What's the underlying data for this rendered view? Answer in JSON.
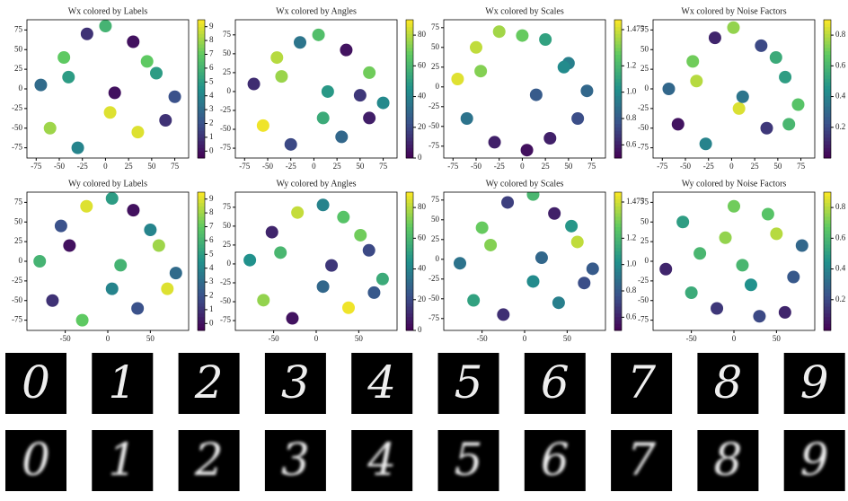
{
  "chart_data": [
    {
      "type": "scatter",
      "title": "Wx colored by Labels",
      "colormap": "viridis",
      "x": [
        -70,
        -45,
        -20,
        5,
        30,
        55,
        75,
        -60,
        -30,
        0,
        35,
        65,
        -40,
        10,
        45
      ],
      "values": [
        5,
        40,
        70,
        -30,
        60,
        20,
        -10,
        -50,
        -75,
        80,
        -55,
        -40,
        15,
        -5,
        35
      ],
      "color_values": [
        3,
        7,
        1,
        9,
        0,
        5,
        2,
        8,
        4,
        6,
        9,
        1,
        5,
        0,
        7
      ],
      "xlim": [
        -85,
        90
      ],
      "xticks": [
        -75,
        -50,
        -25,
        0,
        25,
        50,
        75
      ],
      "ylim": [
        -88,
        88
      ],
      "yticks": [
        -75,
        -50,
        -25,
        0,
        25,
        50,
        75
      ],
      "clim": [
        -0.5,
        9.5
      ],
      "cticks": [
        0,
        1,
        2,
        3,
        4,
        5,
        6,
        7,
        8,
        9
      ]
    },
    {
      "type": "scatter",
      "title": "Wx colored by Angles",
      "colormap": "viridis",
      "x": [
        -65,
        -40,
        -15,
        10,
        35,
        60,
        75,
        -55,
        -25,
        5,
        30,
        60,
        -35,
        15,
        50
      ],
      "values": [
        10,
        45,
        65,
        -35,
        55,
        25,
        -15,
        -45,
        -70,
        75,
        -60,
        -35,
        20,
        0,
        -5
      ],
      "color_values": [
        12,
        80,
        35,
        55,
        5,
        70,
        42,
        88,
        20,
        63,
        30,
        8,
        76,
        48,
        15
      ],
      "xlim": [
        -85,
        90
      ],
      "xticks": [
        -75,
        -50,
        -25,
        0,
        25,
        50,
        75
      ],
      "ylim": [
        -88,
        95
      ],
      "yticks": [
        -75,
        -50,
        -25,
        0,
        25,
        50,
        75
      ],
      "clim": [
        0,
        90
      ],
      "cticks": [
        0,
        20,
        40,
        60,
        80
      ]
    },
    {
      "type": "scatter",
      "title": "Wx colored by Scales",
      "colormap": "viridis",
      "x": [
        -70,
        -50,
        -25,
        0,
        25,
        50,
        70,
        -60,
        -30,
        5,
        30,
        60,
        -45,
        15,
        45
      ],
      "values": [
        10,
        50,
        70,
        65,
        60,
        30,
        -5,
        -40,
        -70,
        -80,
        -65,
        -40,
        20,
        -10,
        25
      ],
      "color_values": [
        1.5,
        1.45,
        1.4,
        1.3,
        1.1,
        0.95,
        0.85,
        0.9,
        0.6,
        0.55,
        0.6,
        0.75,
        1.35,
        0.8,
        1.0
      ],
      "xlim": [
        -85,
        90
      ],
      "xticks": [
        -75,
        -50,
        -25,
        0,
        25,
        50,
        75
      ],
      "ylim": [
        -90,
        85
      ],
      "yticks": [
        -75,
        -50,
        -25,
        0,
        25,
        50,
        75
      ],
      "clim": [
        0.5,
        1.55
      ],
      "cticks": [
        0.6,
        0.8,
        {
          "value": 1.0,
          "label": "1.0"
        },
        1.2,
        1.475
      ]
    },
    {
      "type": "scatter",
      "title": "Wx colored by Noise Factors",
      "colormap": "viridis",
      "x": [
        -68,
        -42,
        -18,
        8,
        32,
        58,
        72,
        -58,
        -28,
        2,
        38,
        62,
        -38,
        12,
        48
      ],
      "values": [
        0,
        35,
        65,
        -25,
        55,
        15,
        -20,
        -45,
        -70,
        78,
        -50,
        -45,
        10,
        -10,
        40
      ],
      "color_values": [
        0.3,
        0.7,
        0.1,
        0.85,
        0.2,
        0.5,
        0.65,
        0.05,
        0.4,
        0.75,
        0.15,
        0.6,
        0.8,
        0.35,
        0.55
      ],
      "xlim": [
        -85,
        90
      ],
      "xticks": [
        -75,
        -50,
        -25,
        0,
        25,
        50,
        75
      ],
      "ylim": [
        -88,
        88
      ],
      "yticks": [
        -75,
        -50,
        -25,
        0,
        25,
        50,
        75
      ],
      "clim": [
        0,
        0.9
      ],
      "cticks": [
        0.2,
        0.4,
        0.6,
        0.8
      ]
    },
    {
      "type": "scatter",
      "title": "Wy colored by Labels",
      "colormap": "viridis",
      "x": [
        -80,
        -55,
        -25,
        5,
        30,
        60,
        80,
        -65,
        -30,
        5,
        35,
        70,
        -45,
        15,
        50
      ],
      "values": [
        0,
        45,
        70,
        -35,
        65,
        20,
        -15,
        -50,
        -75,
        80,
        -60,
        -35,
        20,
        -5,
        40
      ],
      "color_values": [
        6,
        2,
        9,
        4,
        0,
        8,
        3,
        1,
        7,
        5,
        2,
        9,
        0,
        6,
        4
      ],
      "xlim": [
        -95,
        95
      ],
      "xticks": [
        -50,
        0,
        50
      ],
      "ylim": [
        -88,
        88
      ],
      "yticks": [
        -75,
        -50,
        -25,
        0,
        25,
        50,
        75
      ],
      "clim": [
        -0.5,
        9.5
      ],
      "cticks": [
        0,
        1,
        2,
        3,
        4,
        5,
        6,
        7,
        8,
        9
      ]
    },
    {
      "type": "scatter",
      "title": "Wy colored by Angles",
      "colormap": "viridis",
      "x": [
        -78,
        -52,
        -22,
        8,
        32,
        62,
        78,
        -62,
        -28,
        8,
        38,
        68,
        -42,
        18,
        52
      ],
      "values": [
        5,
        42,
        68,
        -30,
        62,
        18,
        -20,
        -48,
        -72,
        78,
        -58,
        -38,
        15,
        -2,
        38
      ],
      "color_values": [
        45,
        10,
        82,
        30,
        65,
        20,
        55,
        75,
        5,
        40,
        88,
        25,
        60,
        15,
        70
      ],
      "xlim": [
        -95,
        95
      ],
      "xticks": [
        -50,
        0,
        50
      ],
      "ylim": [
        -88,
        95
      ],
      "yticks": [
        -75,
        -50,
        -25,
        0,
        25,
        50,
        75
      ],
      "clim": [
        0,
        90
      ],
      "cticks": [
        0,
        20,
        40,
        60,
        80
      ]
    },
    {
      "type": "scatter",
      "title": "Wy colored by Scales",
      "colormap": "viridis",
      "x": [
        -76,
        -50,
        -20,
        10,
        35,
        62,
        80,
        -60,
        -25,
        10,
        40,
        70,
        -40,
        20,
        55
      ],
      "values": [
        -5,
        40,
        72,
        -28,
        58,
        22,
        -12,
        -52,
        -70,
        82,
        -55,
        -30,
        18,
        2,
        42
      ],
      "color_values": [
        0.9,
        1.3,
        0.7,
        1.0,
        0.6,
        1.45,
        0.8,
        1.1,
        0.65,
        1.2,
        0.95,
        0.75,
        1.35,
        0.85,
        1.05
      ],
      "xlim": [
        -95,
        95
      ],
      "xticks": [
        -50,
        0,
        50
      ],
      "ylim": [
        -90,
        85
      ],
      "yticks": [
        -75,
        -50,
        -25,
        0,
        25,
        50,
        75
      ],
      "clim": [
        0.5,
        1.55
      ],
      "cticks": [
        0.6,
        0.8,
        {
          "value": 1.0,
          "label": "1.0"
        },
        1.2,
        1.475
      ]
    },
    {
      "type": "scatter",
      "title": "Wy colored by Noise Factors",
      "colormap": "viridis",
      "x": [
        -80,
        -60,
        -40,
        -20,
        0,
        20,
        40,
        60,
        80,
        -50,
        -10,
        30,
        70,
        10,
        50
      ],
      "values": [
        -10,
        50,
        10,
        -60,
        70,
        -30,
        60,
        -65,
        20,
        -40,
        30,
        -70,
        -20,
        -5,
        35
      ],
      "color_values": [
        0.1,
        0.5,
        0.6,
        0.15,
        0.7,
        0.45,
        0.65,
        0.1,
        0.3,
        0.55,
        0.75,
        0.2,
        0.25,
        0.6,
        0.8
      ],
      "xlim": [
        -95,
        95
      ],
      "xticks": [
        -50,
        0,
        50
      ],
      "ylim": [
        -88,
        88
      ],
      "yticks": [
        -75,
        -50,
        -25,
        0,
        25,
        50,
        75
      ],
      "clim": [
        0,
        0.9
      ],
      "cticks": [
        0.2,
        0.4,
        0.6,
        0.8
      ]
    }
  ],
  "digit_rows": [
    [
      "0",
      "1",
      "2",
      "3",
      "4",
      "5",
      "6",
      "7",
      "8",
      "9"
    ],
    [
      "0",
      "1",
      "2",
      "3",
      "4",
      "5",
      "6",
      "7",
      "8",
      "9"
    ]
  ]
}
